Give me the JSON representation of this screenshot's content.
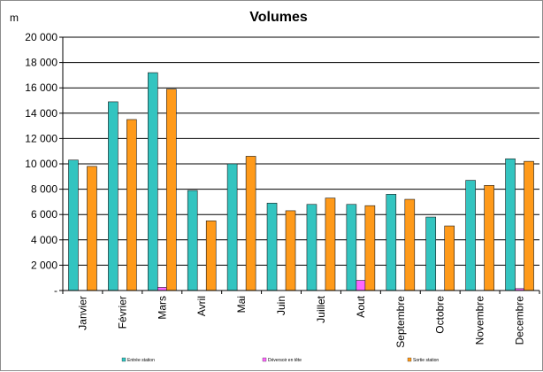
{
  "chart_data": {
    "type": "bar",
    "title": "Volumes",
    "ylabel": "m",
    "ylim": [
      0,
      20000
    ],
    "ytick_step": 2000,
    "ytick_labels": [
      "-",
      "2 000",
      "4 000",
      "6 000",
      "8 000",
      "10 000",
      "12 000",
      "14 000",
      "16 000",
      "18 000",
      "20 000"
    ],
    "grid": true,
    "legend_position": "bottom",
    "categories": [
      "Janvier",
      "Février",
      "Mars",
      "Avril",
      "Mai",
      "Juin",
      "Juillet",
      "Aout",
      "Septembre",
      "Octobre",
      "Novembre",
      "Decembre"
    ],
    "series": [
      {
        "name": "Entrée station",
        "color": "#33c4c0",
        "values": [
          10300,
          14900,
          17200,
          7900,
          10000,
          6900,
          6800,
          6800,
          7600,
          5800,
          8700,
          10400
        ]
      },
      {
        "name": "Déversoir en tête",
        "color": "#ff66ff",
        "values": [
          0,
          0,
          250,
          0,
          0,
          0,
          0,
          800,
          0,
          0,
          0,
          150
        ]
      },
      {
        "name": "Sortie station",
        "color": "#ff9a1a",
        "values": [
          9800,
          13500,
          15900,
          5500,
          10600,
          6300,
          7300,
          6700,
          7200,
          5100,
          8300,
          10200
        ]
      }
    ]
  }
}
